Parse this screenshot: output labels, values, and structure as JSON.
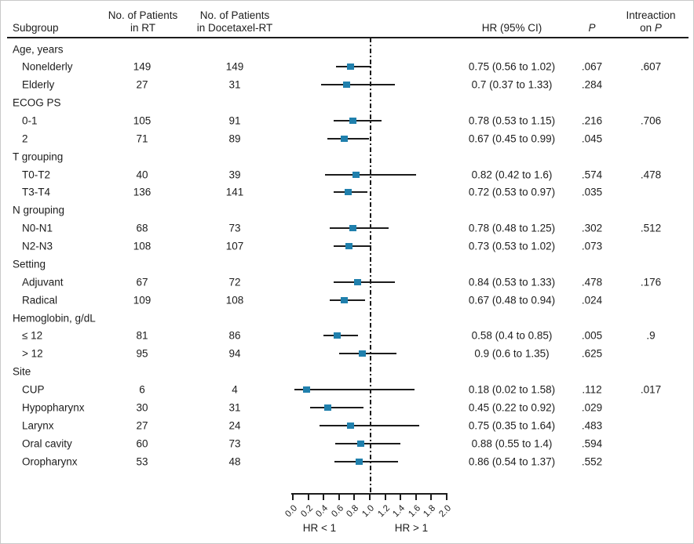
{
  "header": {
    "subgroup": "Subgroup",
    "rt_line1": "No. of Patients",
    "rt_line2": "in RT",
    "doc_line1": "No. of Patients",
    "doc_line2": "in Docetaxel-RT",
    "hr": "HR (95% CI)",
    "p": "P",
    "int_line1": "Intreaction",
    "int_line2_prefix": "on ",
    "int_line2_p": "P"
  },
  "axis": {
    "min": 0,
    "max": 2,
    "reference": 1.0,
    "tick_labels": [
      "0.0",
      "0.2",
      "0.4",
      "0.6",
      "0.8",
      "1.0",
      "1.2",
      "1.4",
      "1.6",
      "1.8",
      "2.0"
    ],
    "left_caption": "HR < 1",
    "right_caption": "HR > 1"
  },
  "colors": {
    "marker": "#2080ad",
    "line": "#1c1c1c",
    "text": "#1d1d1d"
  },
  "chart_data": {
    "type": "forest",
    "x_axis": "Hazard ratio",
    "reference_line": 1.0,
    "xlim": [
      0,
      2
    ],
    "rows": [
      {
        "label": "Age, years",
        "group": true
      },
      {
        "label": "Nonelderly",
        "rt": "149",
        "doc": "149",
        "hr": 0.75,
        "lo": 0.56,
        "hi": 1.02,
        "ci": "0.75 (0.56 to 1.02)",
        "p": ".067",
        "p_interaction": ".607"
      },
      {
        "label": "Elderly",
        "rt": "27",
        "doc": "31",
        "hr": 0.7,
        "lo": 0.37,
        "hi": 1.33,
        "ci": "0.7 (0.37 to 1.33)",
        "p": ".284"
      },
      {
        "label": "ECOG PS",
        "group": true
      },
      {
        "label": "0-1",
        "rt": "105",
        "doc": "91",
        "hr": 0.78,
        "lo": 0.53,
        "hi": 1.15,
        "ci": "0.78 (0.53 to 1.15)",
        "p": ".216",
        "p_interaction": ".706"
      },
      {
        "label": "2",
        "rt": "71",
        "doc": "89",
        "hr": 0.67,
        "lo": 0.45,
        "hi": 0.99,
        "ci": "0.67 (0.45 to 0.99)",
        "p": ".045"
      },
      {
        "label": "T grouping",
        "group": true
      },
      {
        "label": "T0-T2",
        "rt": "40",
        "doc": "39",
        "hr": 0.82,
        "lo": 0.42,
        "hi": 1.6,
        "ci": "0.82 (0.42 to 1.6)",
        "p": ".574",
        "p_interaction": ".478"
      },
      {
        "label": "T3-T4",
        "rt": "136",
        "doc": "141",
        "hr": 0.72,
        "lo": 0.53,
        "hi": 0.97,
        "ci": "0.72 (0.53 to 0.97)",
        "p": ".035"
      },
      {
        "label": "N grouping",
        "group": true
      },
      {
        "label": "N0-N1",
        "rt": "68",
        "doc": "73",
        "hr": 0.78,
        "lo": 0.48,
        "hi": 1.25,
        "ci": "0.78 (0.48 to 1.25)",
        "p": ".302",
        "p_interaction": ".512"
      },
      {
        "label": "N2-N3",
        "rt": "108",
        "doc": "107",
        "hr": 0.73,
        "lo": 0.53,
        "hi": 1.02,
        "ci": "0.73 (0.53 to 1.02)",
        "p": ".073"
      },
      {
        "label": "Setting",
        "group": true
      },
      {
        "label": "Adjuvant",
        "rt": "67",
        "doc": "72",
        "hr": 0.84,
        "lo": 0.53,
        "hi": 1.33,
        "ci": "0.84 (0.53 to 1.33)",
        "p": ".478",
        "p_interaction": ".176"
      },
      {
        "label": "Radical",
        "rt": "109",
        "doc": "108",
        "hr": 0.67,
        "lo": 0.48,
        "hi": 0.94,
        "ci": "0.67 (0.48 to 0.94)",
        "p": ".024"
      },
      {
        "label": "Hemoglobin, g/dL",
        "group": true
      },
      {
        "label": "≤ 12",
        "rt": "81",
        "doc": "86",
        "hr": 0.58,
        "lo": 0.4,
        "hi": 0.85,
        "ci": "0.58 (0.4 to 0.85)",
        "p": ".005",
        "p_interaction": ".9"
      },
      {
        "label": "> 12",
        "rt": "95",
        "doc": "94",
        "hr": 0.9,
        "lo": 0.6,
        "hi": 1.35,
        "ci": "0.9 (0.6 to 1.35)",
        "p": ".625"
      },
      {
        "label": "Site",
        "group": true
      },
      {
        "label": "CUP",
        "rt": "6",
        "doc": "4",
        "hr": 0.18,
        "lo": 0.02,
        "hi": 1.58,
        "ci": "0.18 (0.02 to 1.58)",
        "p": ".112",
        "p_interaction": ".017"
      },
      {
        "label": "Hypopharynx",
        "rt": "30",
        "doc": "31",
        "hr": 0.45,
        "lo": 0.22,
        "hi": 0.92,
        "ci": "0.45 (0.22 to 0.92)",
        "p": ".029"
      },
      {
        "label": "Larynx",
        "rt": "27",
        "doc": "24",
        "hr": 0.75,
        "lo": 0.35,
        "hi": 1.64,
        "ci": "0.75 (0.35 to 1.64)",
        "p": ".483"
      },
      {
        "label": "Oral cavity",
        "rt": "60",
        "doc": "73",
        "hr": 0.88,
        "lo": 0.55,
        "hi": 1.4,
        "ci": "0.88 (0.55 to 1.4)",
        "p": ".594"
      },
      {
        "label": "Oropharynx",
        "rt": "53",
        "doc": "48",
        "hr": 0.86,
        "lo": 0.54,
        "hi": 1.37,
        "ci": "0.86 (0.54 to 1.37)",
        "p": ".552"
      }
    ]
  }
}
